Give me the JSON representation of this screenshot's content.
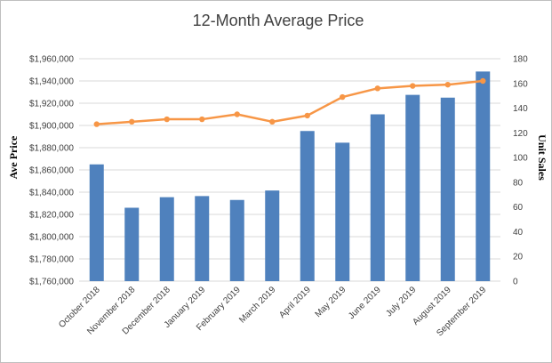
{
  "chart_data": {
    "type": "bar",
    "title": "12-Month Average Price",
    "ylabel": "Ave Price",
    "y2label": "Unit Sales",
    "categories": [
      "October 2018",
      "November 2018",
      "December 2018",
      "January 2019",
      "February 2019",
      "March 2019",
      "April 2019",
      "May 2019",
      "June 2019",
      "July 2019",
      "August 2019",
      "September 2019"
    ],
    "ylim": [
      1760000,
      1960000
    ],
    "y2lim": [
      0,
      180
    ],
    "yticks": [
      "$1,760,000",
      "$1,780,000",
      "$1,800,000",
      "$1,820,000",
      "$1,840,000",
      "$1,860,000",
      "$1,880,000",
      "$1,900,000",
      "$1,920,000",
      "$1,940,000",
      "$1,960,000"
    ],
    "y2ticks": [
      "0",
      "20",
      "40",
      "60",
      "80",
      "100",
      "120",
      "140",
      "160",
      "180"
    ],
    "grid": true,
    "series": [
      {
        "type": "bar",
        "axis": "left",
        "color": "#4f81bd",
        "values": [
          1865000,
          1826000,
          1835500,
          1836500,
          1833000,
          1841500,
          1895000,
          1884500,
          1910000,
          1927500,
          1925000,
          1948500
        ]
      },
      {
        "type": "line",
        "axis": "right",
        "color": "#f79646",
        "values": [
          127,
          129,
          131,
          131,
          135,
          129,
          134,
          149,
          156,
          158,
          159,
          162
        ]
      }
    ]
  }
}
